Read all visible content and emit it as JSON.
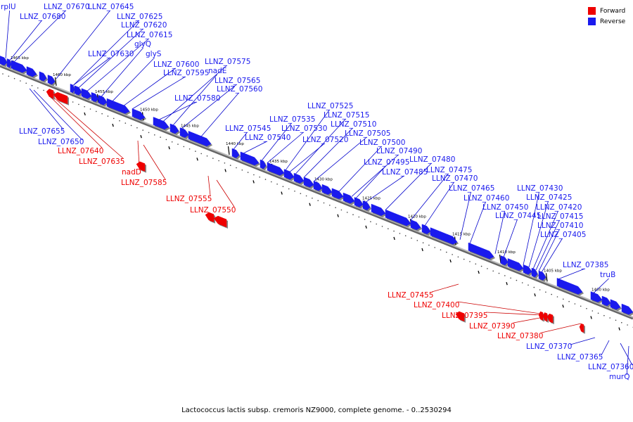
{
  "caption": "Lactococcus lactis subsp. cremoris NZ9000, complete genome. - 0..2530294",
  "legend": [
    {
      "label": "Forward",
      "color": "#ee0000"
    },
    {
      "label": "Reverse",
      "color": "#1a1aee"
    }
  ],
  "colors": {
    "forward": "#ee0000",
    "reverse": "#1a1aee",
    "leader_forward": "#cc0000",
    "leader_reverse": "#0000cc"
  },
  "kbp_ticks": [
    "1465 kbp",
    "1460 kbp",
    "1455 kbp",
    "1450 kbp",
    "1445 kbp",
    "1440 kbp",
    "1435 kbp",
    "1430 kbp",
    "1425 kbp",
    "1420 kbp",
    "1415 kbp",
    "1410 kbp",
    "1405 kbp",
    "1400 kbp"
  ],
  "reverse_genes": [
    "rplU",
    "LLNZ_07680",
    "LLNZ_07670",
    "LLNZ_07645",
    "LLNZ_07625",
    "LLNZ_07620",
    "LLNZ_07615",
    "LLNZ_07630",
    "glyQ",
    "glyS",
    "LLNZ_07600",
    "LLNZ_07595",
    "LLNZ_07575",
    "nadE",
    "LLNZ_07565",
    "LLNZ_07560",
    "LLNZ_07580",
    "LLNZ_07525",
    "LLNZ_07515",
    "LLNZ_07535",
    "LLNZ_07510",
    "LLNZ_07545",
    "LLNZ_07530",
    "LLNZ_07505",
    "LLNZ_07540",
    "LLNZ_07520",
    "LLNZ_07500",
    "LLNZ_07490",
    "LLNZ_07480",
    "LLNZ_07495",
    "LLNZ_07475",
    "LLNZ_07485",
    "LLNZ_07470",
    "LLNZ_07465",
    "LLNZ_07430",
    "LLNZ_07460",
    "LLNZ_07425",
    "LLNZ_07450",
    "LLNZ_07420",
    "LLNZ_07445",
    "LLNZ_07415",
    "LLNZ_07410",
    "LLNZ_07405",
    "LLNZ_07385",
    "truB",
    "LLNZ_07655",
    "LLNZ_07650",
    "LLNZ_07370",
    "LLNZ_07365",
    "LLNZ_07360",
    "murQ"
  ],
  "forward_genes": [
    "LLNZ_07640",
    "LLNZ_07635",
    "nadD",
    "LLNZ_07585",
    "LLNZ_07555",
    "LLNZ_07550",
    "LLNZ_07455",
    "LLNZ_07400",
    "LLNZ_07395",
    "LLNZ_07390",
    "LLNZ_07380"
  ]
}
